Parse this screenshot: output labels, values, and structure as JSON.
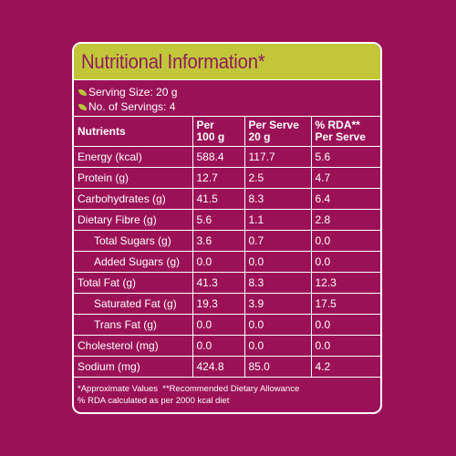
{
  "title": "Nutritional Information*",
  "serving": {
    "size": "Serving Size: 20 g",
    "count": "No. of Servings: 4"
  },
  "columns": {
    "nutrients": "Nutrients",
    "per100_line1": "Per",
    "per100_line2": "100 g",
    "perserve_line1": "Per Serve",
    "perserve_line2": "20 g",
    "rda_line1": "% RDA**",
    "rda_line2": "Per Serve"
  },
  "rows": [
    {
      "name": "Energy (kcal)",
      "per100": "588.4",
      "perserve": "117.7",
      "rda": "5.6"
    },
    {
      "name": "Protein (g)",
      "per100": "12.7",
      "perserve": "2.5",
      "rda": "4.7"
    },
    {
      "name": "Carbohydrates (g)",
      "per100": "41.5",
      "perserve": "8.3",
      "rda": "6.4"
    },
    {
      "name": "Dietary Fibre (g)",
      "per100": "5.6",
      "perserve": "1.1",
      "rda": "2.8"
    },
    {
      "name": "Total Sugars (g)",
      "per100": "3.6",
      "perserve": "0.7",
      "rda": "0.0"
    },
    {
      "name": "Added Sugars (g)",
      "per100": "0.0",
      "perserve": "0.0",
      "rda": "0.0"
    },
    {
      "name": "Total Fat (g)",
      "per100": "41.3",
      "perserve": "8.3",
      "rda": "12.3"
    },
    {
      "name": "Saturated Fat (g)",
      "per100": "19.3",
      "perserve": "3.9",
      "rda": "17.5"
    },
    {
      "name": "Trans Fat (g)",
      "per100": "0.0",
      "perserve": "0.0",
      "rda": "0.0"
    },
    {
      "name": "Cholesterol (mg)",
      "per100": "0.0",
      "perserve": "0.0",
      "rda": "0.0"
    },
    {
      "name": "Sodium (mg)",
      "per100": "424.8",
      "perserve": "85.0",
      "rda": "4.2"
    }
  ],
  "footer": {
    "line1": "*Approximate Values  **Recommended Dietary Allowance",
    "line2": "% RDA calculated as per 2000 kcal diet"
  },
  "colors": {
    "background": "#9b1158",
    "title_bar": "#c2c73a",
    "title_text": "#8e1c5c",
    "text": "#ffffff"
  },
  "icons": {
    "bullet": "leaf-icon"
  }
}
